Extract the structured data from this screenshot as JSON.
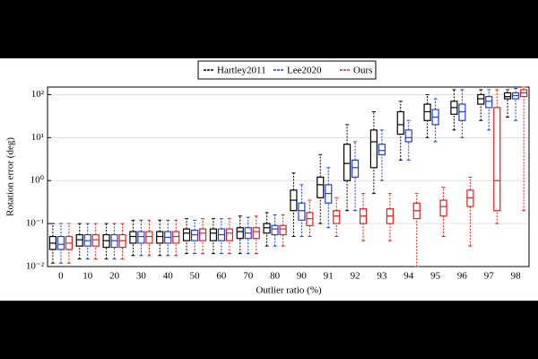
{
  "chart_data": {
    "type": "box",
    "x_label": "Outlier ratio (%)",
    "y_label": "Rotation error (deg)",
    "categories": [
      "0",
      "10",
      "20",
      "30",
      "40",
      "50",
      "60",
      "70",
      "80",
      "90",
      "91",
      "92",
      "93",
      "94",
      "95",
      "96",
      "97",
      "98"
    ],
    "ylim": [
      0.01,
      150
    ],
    "log_y": true,
    "grid": true,
    "legend": "top",
    "yticks": [
      {
        "value": 0.01,
        "label": "10⁻²"
      },
      {
        "value": 0.1,
        "label": "10⁻¹"
      },
      {
        "value": 1,
        "label": "10⁰"
      },
      {
        "value": 10,
        "label": "10¹"
      },
      {
        "value": 100,
        "label": "10²"
      }
    ],
    "series": [
      {
        "name": "Hartley2011",
        "color": "#000000",
        "values": [
          [
            0.012,
            0.025,
            0.035,
            0.05,
            0.1
          ],
          [
            0.015,
            0.03,
            0.042,
            0.055,
            0.1
          ],
          [
            0.015,
            0.028,
            0.04,
            0.055,
            0.1
          ],
          [
            0.018,
            0.035,
            0.05,
            0.065,
            0.12
          ],
          [
            0.018,
            0.035,
            0.05,
            0.065,
            0.12
          ],
          [
            0.02,
            0.04,
            0.06,
            0.075,
            0.13
          ],
          [
            0.02,
            0.04,
            0.06,
            0.075,
            0.13
          ],
          [
            0.02,
            0.045,
            0.065,
            0.08,
            0.15
          ],
          [
            0.03,
            0.06,
            0.08,
            0.1,
            0.18
          ],
          [
            0.05,
            0.2,
            0.35,
            0.6,
            1.5
          ],
          [
            0.1,
            0.4,
            0.8,
            1.2,
            4
          ],
          [
            0.2,
            1,
            2.5,
            7,
            20
          ],
          [
            0.5,
            2,
            8,
            15,
            40
          ],
          [
            3,
            12,
            20,
            40,
            70
          ],
          [
            10,
            25,
            40,
            60,
            100
          ],
          [
            15,
            35,
            50,
            70,
            130
          ],
          [
            25,
            60,
            80,
            100,
            130
          ],
          [
            30,
            80,
            90,
            110,
            130
          ]
        ]
      },
      {
        "name": "Lee2020",
        "color": "#1f3fd6",
        "values": [
          [
            0.012,
            0.025,
            0.033,
            0.05,
            0.1
          ],
          [
            0.015,
            0.03,
            0.04,
            0.055,
            0.1
          ],
          [
            0.015,
            0.028,
            0.04,
            0.055,
            0.1
          ],
          [
            0.018,
            0.035,
            0.05,
            0.065,
            0.12
          ],
          [
            0.018,
            0.035,
            0.048,
            0.065,
            0.12
          ],
          [
            0.02,
            0.04,
            0.055,
            0.07,
            0.12
          ],
          [
            0.02,
            0.04,
            0.055,
            0.075,
            0.13
          ],
          [
            0.02,
            0.045,
            0.06,
            0.08,
            0.14
          ],
          [
            0.03,
            0.055,
            0.075,
            0.09,
            0.16
          ],
          [
            0.05,
            0.12,
            0.2,
            0.3,
            0.8
          ],
          [
            0.08,
            0.3,
            0.5,
            0.8,
            2
          ],
          [
            0.2,
            1.2,
            2,
            3,
            8
          ],
          [
            1,
            4,
            5,
            7,
            15
          ],
          [
            3,
            8,
            10,
            15,
            25
          ],
          [
            8,
            20,
            30,
            45,
            80
          ],
          [
            10,
            25,
            40,
            60,
            130
          ],
          [
            15,
            50,
            70,
            90,
            130
          ],
          [
            25,
            80,
            95,
            110,
            140
          ]
        ]
      },
      {
        "name": "Ours",
        "color": "#e0201b",
        "values": [
          [
            0.012,
            0.025,
            0.035,
            0.05,
            0.1
          ],
          [
            0.015,
            0.03,
            0.042,
            0.055,
            0.1
          ],
          [
            0.015,
            0.028,
            0.04,
            0.055,
            0.1
          ],
          [
            0.018,
            0.035,
            0.05,
            0.065,
            0.12
          ],
          [
            0.018,
            0.035,
            0.05,
            0.065,
            0.12
          ],
          [
            0.02,
            0.04,
            0.06,
            0.075,
            0.13
          ],
          [
            0.02,
            0.04,
            0.06,
            0.075,
            0.13
          ],
          [
            0.02,
            0.045,
            0.065,
            0.08,
            0.15
          ],
          [
            0.03,
            0.055,
            0.075,
            0.09,
            0.16
          ],
          [
            0.05,
            0.09,
            0.13,
            0.18,
            0.35
          ],
          [
            0.05,
            0.1,
            0.15,
            0.2,
            0.4
          ],
          [
            0.04,
            0.1,
            0.15,
            0.22,
            0.5
          ],
          [
            0.04,
            0.1,
            0.15,
            0.22,
            0.5
          ],
          [
            0.01,
            0.13,
            0.2,
            0.3,
            0.5
          ],
          [
            0.05,
            0.15,
            0.25,
            0.35,
            0.7
          ],
          [
            0.03,
            0.25,
            0.4,
            0.6,
            1.2
          ],
          [
            0.1,
            0.2,
            1,
            50,
            130
          ],
          [
            0.2,
            90,
            110,
            130,
            150
          ]
        ]
      }
    ]
  }
}
